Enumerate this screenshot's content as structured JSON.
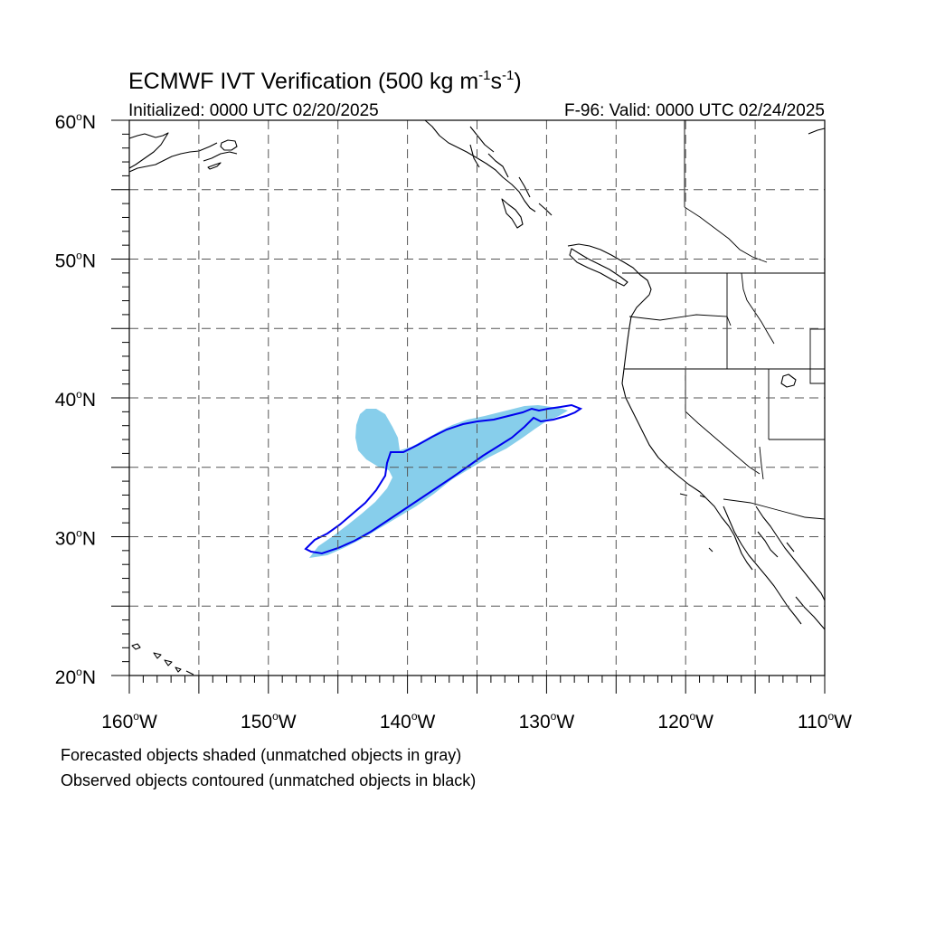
{
  "header": {
    "title": "ECMWF IVT Verification (500 kg m",
    "title_sup1": "-1",
    "title_mid": "s",
    "title_sup2": "-1",
    "title_end": ")",
    "init": "Initialized: 0000 UTC 02/20/2025",
    "valid": "F-96: Valid: 0000 UTC 02/24/2025"
  },
  "axes": {
    "lon_range": [
      -160,
      -110
    ],
    "lat_range": [
      20,
      60
    ],
    "lat_labels": [
      {
        "lat": 60,
        "text": "60",
        "suffix": "N"
      },
      {
        "lat": 50,
        "text": "50",
        "suffix": "N"
      },
      {
        "lat": 40,
        "text": "40",
        "suffix": "N"
      },
      {
        "lat": 30,
        "text": "30",
        "suffix": "N"
      },
      {
        "lat": 20,
        "text": "20",
        "suffix": "N"
      }
    ],
    "lon_labels": [
      {
        "lon": -160,
        "text": "160",
        "suffix": "W"
      },
      {
        "lon": -150,
        "text": "150",
        "suffix": "W"
      },
      {
        "lon": -140,
        "text": "140",
        "suffix": "W"
      },
      {
        "lon": -130,
        "text": "130",
        "suffix": "W"
      },
      {
        "lon": -120,
        "text": "120",
        "suffix": "W"
      },
      {
        "lon": -110,
        "text": "110",
        "suffix": "W"
      }
    ],
    "grid_interval_deg": 5,
    "grid_style": "dashed"
  },
  "legend": {
    "line1": "Forecasted objects shaded (unmatched objects in gray)",
    "line2": "Observed objects contoured (unmatched objects in black)"
  },
  "colors": {
    "forecast_fill": "#87ceeb",
    "observed_contour": "#0000ee",
    "coastline": "#000000",
    "grid": "#555555"
  }
}
